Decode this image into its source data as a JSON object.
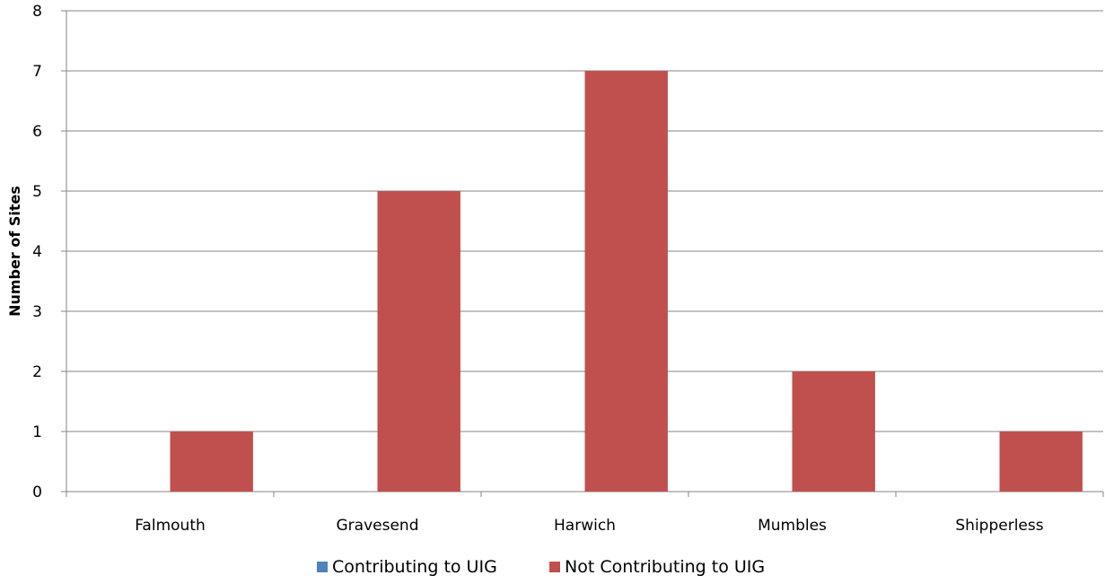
{
  "chart_data": {
    "type": "bar",
    "categories": [
      "Falmouth",
      "Gravesend",
      "Harwich",
      "Mumbles",
      "Shipperless"
    ],
    "series": [
      {
        "name": "Contributing to UIG",
        "values": [
          0,
          0,
          0,
          0,
          0
        ],
        "color": "#4f81bd"
      },
      {
        "name": "Not Contributing to UIG",
        "values": [
          1,
          5,
          7,
          2,
          1
        ],
        "color": "#c0504d"
      }
    ],
    "title": "",
    "xlabel": "",
    "ylabel": "Number of Sites",
    "ylim": [
      0,
      8
    ],
    "yticks": [
      0,
      1,
      2,
      3,
      4,
      5,
      6,
      7,
      8
    ],
    "grid": true,
    "legend_position": "bottom",
    "gridline_color": "#868686",
    "axis_color": "#868686"
  }
}
